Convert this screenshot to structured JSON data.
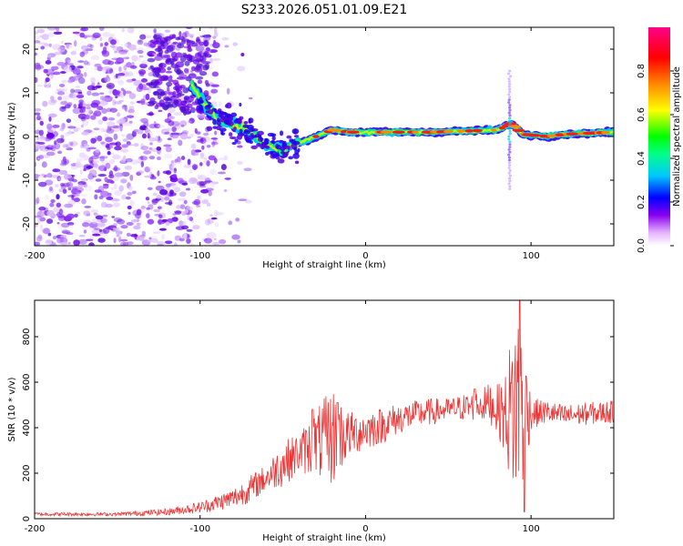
{
  "chart_data": [
    {
      "type": "heatmap",
      "title": "S233.2026.051.01.09.E21",
      "xlabel": "Height of straight line (km)",
      "ylabel": "Frequency (Hz)",
      "xlim": [
        -200,
        150
      ],
      "ylim": [
        -25,
        25
      ],
      "x_ticks": [
        "-200",
        "-100",
        "0",
        "100"
      ],
      "y_ticks": [
        "-20",
        "-10",
        "0",
        "10",
        "20"
      ],
      "colorbar": {
        "label": "Normalized spectral amplitude",
        "range": [
          0,
          1
        ],
        "ticks": [
          "0.0",
          "0.2",
          "0.4",
          "0.6",
          "0.8"
        ]
      },
      "ridge": [
        {
          "x": -110,
          "y": 14
        },
        {
          "x": -100,
          "y": 9
        },
        {
          "x": -90,
          "y": 4
        },
        {
          "x": -80,
          "y": 3
        },
        {
          "x": -70,
          "y": 1
        },
        {
          "x": -60,
          "y": -2
        },
        {
          "x": -50,
          "y": -3
        },
        {
          "x": -40,
          "y": -1.5
        },
        {
          "x": -30,
          "y": 0
        },
        {
          "x": -20,
          "y": 1.5
        },
        {
          "x": -10,
          "y": 1
        },
        {
          "x": 0,
          "y": 1
        },
        {
          "x": 40,
          "y": 1
        },
        {
          "x": 80,
          "y": 1.5
        },
        {
          "x": 88,
          "y": 3
        },
        {
          "x": 95,
          "y": 0.5
        },
        {
          "x": 110,
          "y": 0
        },
        {
          "x": 120,
          "y": 0.5
        },
        {
          "x": 150,
          "y": 1
        }
      ],
      "spike": {
        "x": 87,
        "y_range": [
          -12,
          15
        ]
      }
    },
    {
      "type": "line",
      "xlabel": "Height of straight line (km)",
      "ylabel": "SNR (10 * v/v)",
      "xlim": [
        -200,
        150
      ],
      "ylim": [
        0,
        960
      ],
      "x_ticks": [
        "-200",
        "-100",
        "0",
        "100"
      ],
      "y_ticks": [
        "0",
        "200",
        "400",
        "600",
        "800"
      ],
      "series": [
        {
          "name": "SNR",
          "color": "#ee3333",
          "envelope": {
            "x": [
              -200,
              -150,
              -120,
              -100,
              -90,
              -80,
              -70,
              -60,
              -50,
              -40,
              -30,
              -20,
              -10,
              0,
              10,
              20,
              30,
              40,
              50,
              60,
              70,
              75,
              80,
              85,
              90,
              95,
              100,
              110,
              120,
              130,
              150
            ],
            "y": [
              20,
              20,
              30,
              50,
              70,
              90,
              130,
              180,
              240,
              290,
              330,
              360,
              370,
              390,
              410,
              440,
              460,
              470,
              480,
              490,
              500,
              510,
              480,
              450,
              500,
              520,
              460,
              470,
              450,
              460,
              470
            ],
            "noise": [
              8,
              8,
              15,
              25,
              35,
              45,
              60,
              60,
              100,
              90,
              150,
              220,
              100,
              90,
              80,
              70,
              60,
              60,
              50,
              60,
              70,
              90,
              110,
              200,
              450,
              420,
              70,
              50,
              50,
              50,
              50
            ]
          },
          "peaks": [
            {
              "x": -32,
              "y": 480
            },
            {
              "x": -17,
              "y": 510
            },
            {
              "x": 66,
              "y": 570
            },
            {
              "x": 93,
              "y": 960
            },
            {
              "x": 96,
              "y": 30
            }
          ]
        }
      ]
    }
  ]
}
